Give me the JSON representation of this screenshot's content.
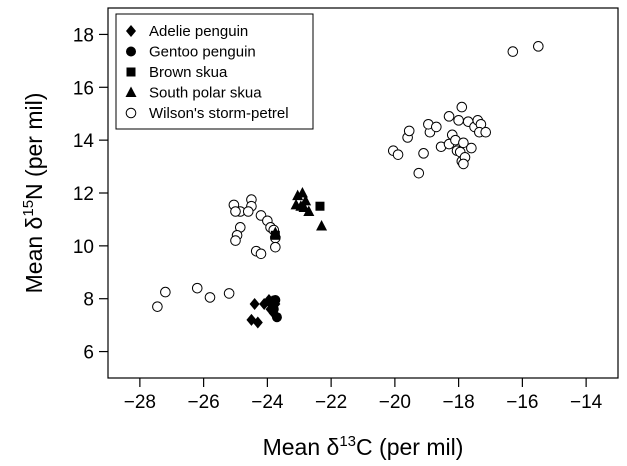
{
  "chart_data": {
    "type": "scatter",
    "xlabel": {
      "prefix": "Mean δ",
      "sup": "13",
      "suffix": "C (per mil)"
    },
    "ylabel": {
      "prefix": "Mean δ",
      "sup": "15",
      "suffix": "N (per mil)"
    },
    "xlim": [
      -29,
      -13
    ],
    "ylim": [
      5,
      19
    ],
    "xticks": [
      -28,
      -26,
      -24,
      -22,
      -20,
      -18,
      -16,
      -14
    ],
    "yticks": [
      6,
      8,
      10,
      12,
      14,
      16,
      18
    ],
    "grid": false,
    "legend_position": "top-left",
    "series": [
      {
        "name": "Adelie penguin",
        "marker": "diamond",
        "color": "#000000",
        "points": [
          [
            -24.5,
            7.2
          ],
          [
            -24.3,
            7.1
          ],
          [
            -24.4,
            7.8
          ],
          [
            -24.1,
            7.8
          ],
          [
            -23.95,
            7.95
          ],
          [
            -23.85,
            7.9
          ],
          [
            -23.9,
            7.6
          ],
          [
            -23.8,
            7.45
          ],
          [
            -23.75,
            7.8
          ]
        ]
      },
      {
        "name": "Gentoo penguin",
        "marker": "circle",
        "color": "#000000",
        "points": [
          [
            -23.75,
            7.95
          ],
          [
            -23.8,
            7.6
          ],
          [
            -23.7,
            7.3
          ],
          [
            -23.85,
            7.8
          ]
        ]
      },
      {
        "name": "Brown skua",
        "marker": "square",
        "color": "#000000",
        "points": [
          [
            -23.75,
            10.4
          ],
          [
            -22.35,
            11.5
          ]
        ]
      },
      {
        "name": "South polar skua",
        "marker": "triangle",
        "color": "#000000",
        "points": [
          [
            -23.05,
            11.9
          ],
          [
            -22.9,
            12.0
          ],
          [
            -22.95,
            11.5
          ],
          [
            -22.8,
            11.7
          ],
          [
            -23.1,
            11.55
          ],
          [
            -22.7,
            11.3
          ],
          [
            -22.85,
            11.45
          ],
          [
            -22.3,
            10.75
          ],
          [
            -23.75,
            10.5
          ]
        ]
      },
      {
        "name": "Wilson's storm-petrel",
        "marker": "open-circle",
        "color": "#000000",
        "points": [
          [
            -27.45,
            7.7
          ],
          [
            -27.2,
            8.25
          ],
          [
            -26.2,
            8.4
          ],
          [
            -25.8,
            8.05
          ],
          [
            -25.2,
            8.2
          ],
          [
            -25.05,
            11.55
          ],
          [
            -24.85,
            11.3
          ],
          [
            -24.5,
            11.75
          ],
          [
            -24.5,
            11.5
          ],
          [
            -24.6,
            11.3
          ],
          [
            -25.0,
            11.3
          ],
          [
            -24.85,
            10.7
          ],
          [
            -24.95,
            10.4
          ],
          [
            -25.0,
            10.2
          ],
          [
            -24.2,
            11.15
          ],
          [
            -24.0,
            10.95
          ],
          [
            -23.9,
            10.7
          ],
          [
            -23.8,
            10.6
          ],
          [
            -23.75,
            10.3
          ],
          [
            -23.75,
            9.95
          ],
          [
            -24.35,
            9.8
          ],
          [
            -24.2,
            9.7
          ],
          [
            -20.05,
            13.6
          ],
          [
            -19.9,
            13.45
          ],
          [
            -19.6,
            14.1
          ],
          [
            -19.55,
            14.35
          ],
          [
            -19.25,
            12.75
          ],
          [
            -19.1,
            13.5
          ],
          [
            -18.9,
            14.3
          ],
          [
            -18.95,
            14.6
          ],
          [
            -18.7,
            14.5
          ],
          [
            -18.55,
            13.75
          ],
          [
            -18.3,
            14.9
          ],
          [
            -18.2,
            14.2
          ],
          [
            -18.3,
            13.85
          ],
          [
            -18.1,
            14.0
          ],
          [
            -18.05,
            13.6
          ],
          [
            -18.0,
            14.75
          ],
          [
            -17.9,
            15.25
          ],
          [
            -17.85,
            13.9
          ],
          [
            -17.95,
            13.55
          ],
          [
            -17.9,
            13.2
          ],
          [
            -17.8,
            13.35
          ],
          [
            -17.85,
            13.1
          ],
          [
            -17.7,
            14.7
          ],
          [
            -17.6,
            13.7
          ],
          [
            -17.5,
            14.5
          ],
          [
            -17.4,
            14.75
          ],
          [
            -17.3,
            14.6
          ],
          [
            -17.35,
            14.3
          ],
          [
            -17.15,
            14.3
          ],
          [
            -16.3,
            17.35
          ],
          [
            -15.5,
            17.55
          ]
        ]
      }
    ]
  }
}
